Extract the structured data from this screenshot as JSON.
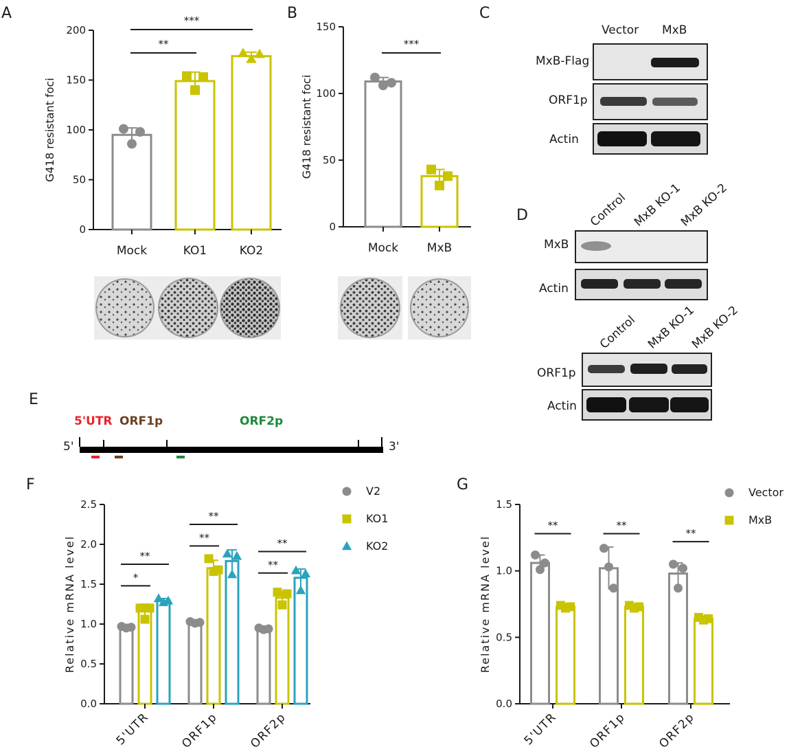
{
  "panel_letters": [
    "A",
    "B",
    "C",
    "D",
    "E",
    "F",
    "G"
  ],
  "colors": {
    "mock": "#8c8c8c",
    "ko1": "#c8c400",
    "ko2": "#2aa3bd",
    "text": "#1a1a1a",
    "utr": "#e8232c",
    "orf1": "#6b4224",
    "orf2": "#1d8a3b"
  },
  "chart_data": [
    {
      "panel": "A",
      "type": "bar",
      "ylabel": "G418 resistant foci",
      "ylim": [
        0,
        200
      ],
      "yticks": [
        0,
        50,
        100,
        150,
        200
      ],
      "categories": [
        "Mock",
        "KO1",
        "KO2"
      ],
      "values": [
        95,
        149,
        174
      ],
      "errors": [
        7,
        9,
        4
      ],
      "points": [
        [
          101,
          86,
          98
        ],
        [
          154,
          140,
          153
        ],
        [
          177,
          171,
          176
        ]
      ],
      "markers": [
        "circle",
        "square",
        "triangle"
      ],
      "colors": [
        "#8c8c8c",
        "#c8c400",
        "#c8c400"
      ],
      "significance": [
        {
          "from": 0,
          "to": 1,
          "label": "**"
        },
        {
          "from": 0,
          "to": 2,
          "label": "***"
        }
      ]
    },
    {
      "panel": "B",
      "type": "bar",
      "ylabel": "G418 resistant foci",
      "ylim": [
        0,
        150
      ],
      "yticks": [
        0,
        50,
        100,
        150
      ],
      "categories": [
        "Mock",
        "MxB"
      ],
      "values": [
        109,
        38
      ],
      "errors": [
        3,
        5
      ],
      "points": [
        [
          112,
          106,
          108
        ],
        [
          43,
          31,
          38
        ]
      ],
      "markers": [
        "circle",
        "square"
      ],
      "colors": [
        "#8c8c8c",
        "#c8c400"
      ],
      "significance": [
        {
          "from": 0,
          "to": 1,
          "label": "***"
        }
      ]
    },
    {
      "panel": "F",
      "type": "bar",
      "ylabel": "Relative mRNA level",
      "ylim": [
        0,
        2.5
      ],
      "yticks": [
        "0.0",
        "0.5",
        "1.0",
        "1.5",
        "2.0",
        "2.5"
      ],
      "categories": [
        "5'UTR",
        "ORF1p",
        "ORF2p"
      ],
      "series": [
        {
          "name": "V2",
          "values": [
            0.96,
            1.02,
            0.94
          ],
          "errors": [
            0.02,
            0.02,
            0.02
          ],
          "marker": "circle",
          "color": "#8c8c8c",
          "points": [
            [
              0.97,
              0.95,
              0.96
            ],
            [
              1.03,
              1.01,
              1.02
            ],
            [
              0.95,
              0.93,
              0.94
            ]
          ]
        },
        {
          "name": "KO1",
          "values": [
            1.17,
            1.7,
            1.33
          ],
          "errors": [
            0.08,
            0.1,
            0.08
          ],
          "marker": "square",
          "color": "#c8c400",
          "points": [
            [
              1.2,
              1.06,
              1.2
            ],
            [
              1.82,
              1.66,
              1.68
            ],
            [
              1.4,
              1.24,
              1.38
            ]
          ]
        },
        {
          "name": "KO2",
          "values": [
            1.29,
            1.79,
            1.58
          ],
          "errors": [
            0.03,
            0.14,
            0.11
          ],
          "marker": "triangle",
          "color": "#2aa3bd",
          "points": [
            [
              1.32,
              1.27,
              1.29
            ],
            [
              1.88,
              1.62,
              1.85
            ],
            [
              1.67,
              1.42,
              1.63
            ]
          ]
        }
      ],
      "significance": [
        {
          "group": 0,
          "from": 0,
          "to": 1,
          "label": "*",
          "level": 1.48
        },
        {
          "group": 0,
          "from": 0,
          "to": 2,
          "label": "**",
          "level": 1.75
        },
        {
          "group": 1,
          "from": 0,
          "to": 1,
          "label": "**",
          "level": 1.98
        },
        {
          "group": 1,
          "from": 0,
          "to": 2,
          "label": "**",
          "level": 2.25
        },
        {
          "group": 2,
          "from": 0,
          "to": 1,
          "label": "**",
          "level": 1.64
        },
        {
          "group": 2,
          "from": 0,
          "to": 2,
          "label": "**",
          "level": 1.91
        }
      ]
    },
    {
      "panel": "G",
      "type": "bar",
      "ylabel": "Relative mRNA level",
      "ylim": [
        0,
        1.5
      ],
      "yticks": [
        "0.0",
        "0.5",
        "1.0",
        "1.5"
      ],
      "categories": [
        "5'UTR",
        "ORF1p",
        "ORF2p"
      ],
      "series": [
        {
          "name": "Vector",
          "values": [
            1.06,
            1.02,
            0.98
          ],
          "errors": [
            0.06,
            0.16,
            0.08
          ],
          "marker": "circle",
          "color": "#8c8c8c",
          "points": [
            [
              1.12,
              1.01,
              1.06
            ],
            [
              1.17,
              1.03,
              0.87
            ],
            [
              1.05,
              0.87,
              1.02
            ]
          ]
        },
        {
          "name": "MxB",
          "values": [
            0.73,
            0.73,
            0.64
          ],
          "errors": [
            0.02,
            0.01,
            0.02
          ],
          "marker": "square",
          "color": "#c8c400",
          "points": [
            [
              0.74,
              0.72,
              0.73
            ],
            [
              0.74,
              0.72,
              0.73
            ],
            [
              0.65,
              0.63,
              0.64
            ]
          ]
        }
      ],
      "significance": [
        {
          "group": 0,
          "from": 0,
          "to": 1,
          "label": "**",
          "level": 1.28
        },
        {
          "group": 1,
          "from": 0,
          "to": 1,
          "label": "**",
          "level": 1.28
        },
        {
          "group": 2,
          "from": 0,
          "to": 1,
          "label": "**",
          "level": 1.22
        }
      ]
    }
  ],
  "blot_C": {
    "lanes": [
      "Vector",
      "MxB"
    ],
    "rows": [
      "MxB-Flag",
      "ORF1p",
      "Actin"
    ]
  },
  "blot_D1": {
    "lanes": [
      "Control",
      "MxB KO-1",
      "MxB KO-2"
    ],
    "rows": [
      "MxB",
      "Actin"
    ]
  },
  "blot_D2": {
    "lanes": [
      "Control",
      "MxB KO-1",
      "MxB KO-2"
    ],
    "rows": [
      "ORF1p",
      "Actin"
    ]
  },
  "schematic_E": {
    "labels": [
      "5'UTR",
      "ORF1p",
      "ORF2p"
    ],
    "end5": "5'",
    "end3": "3'"
  }
}
